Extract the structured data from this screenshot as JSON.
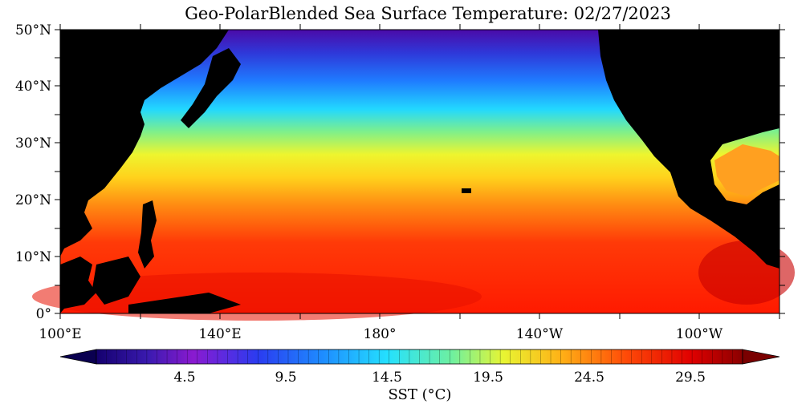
{
  "title": "Geo-PolarBlended Sea Surface Temperature: 02/27/2023",
  "y_tick_labels": [
    "50°N",
    "40°N",
    "30°N",
    "20°N",
    "10°N",
    "0°"
  ],
  "x_tick_labels": [
    "100°E",
    "140°E",
    "180°",
    "140°W",
    "100°W"
  ],
  "colorbar": {
    "tick_labels": [
      "4.5",
      "9.5",
      "14.5",
      "19.5",
      "24.5",
      "29.5"
    ],
    "label": "SST (°C)"
  },
  "colors": {
    "land": "#000000",
    "cold": "#2a0a8c",
    "cool": "#1e6bff",
    "mild": "#22e0ff",
    "warm": "#f2f530",
    "hot": "#ff2a00",
    "hottest": "#a80000"
  }
}
